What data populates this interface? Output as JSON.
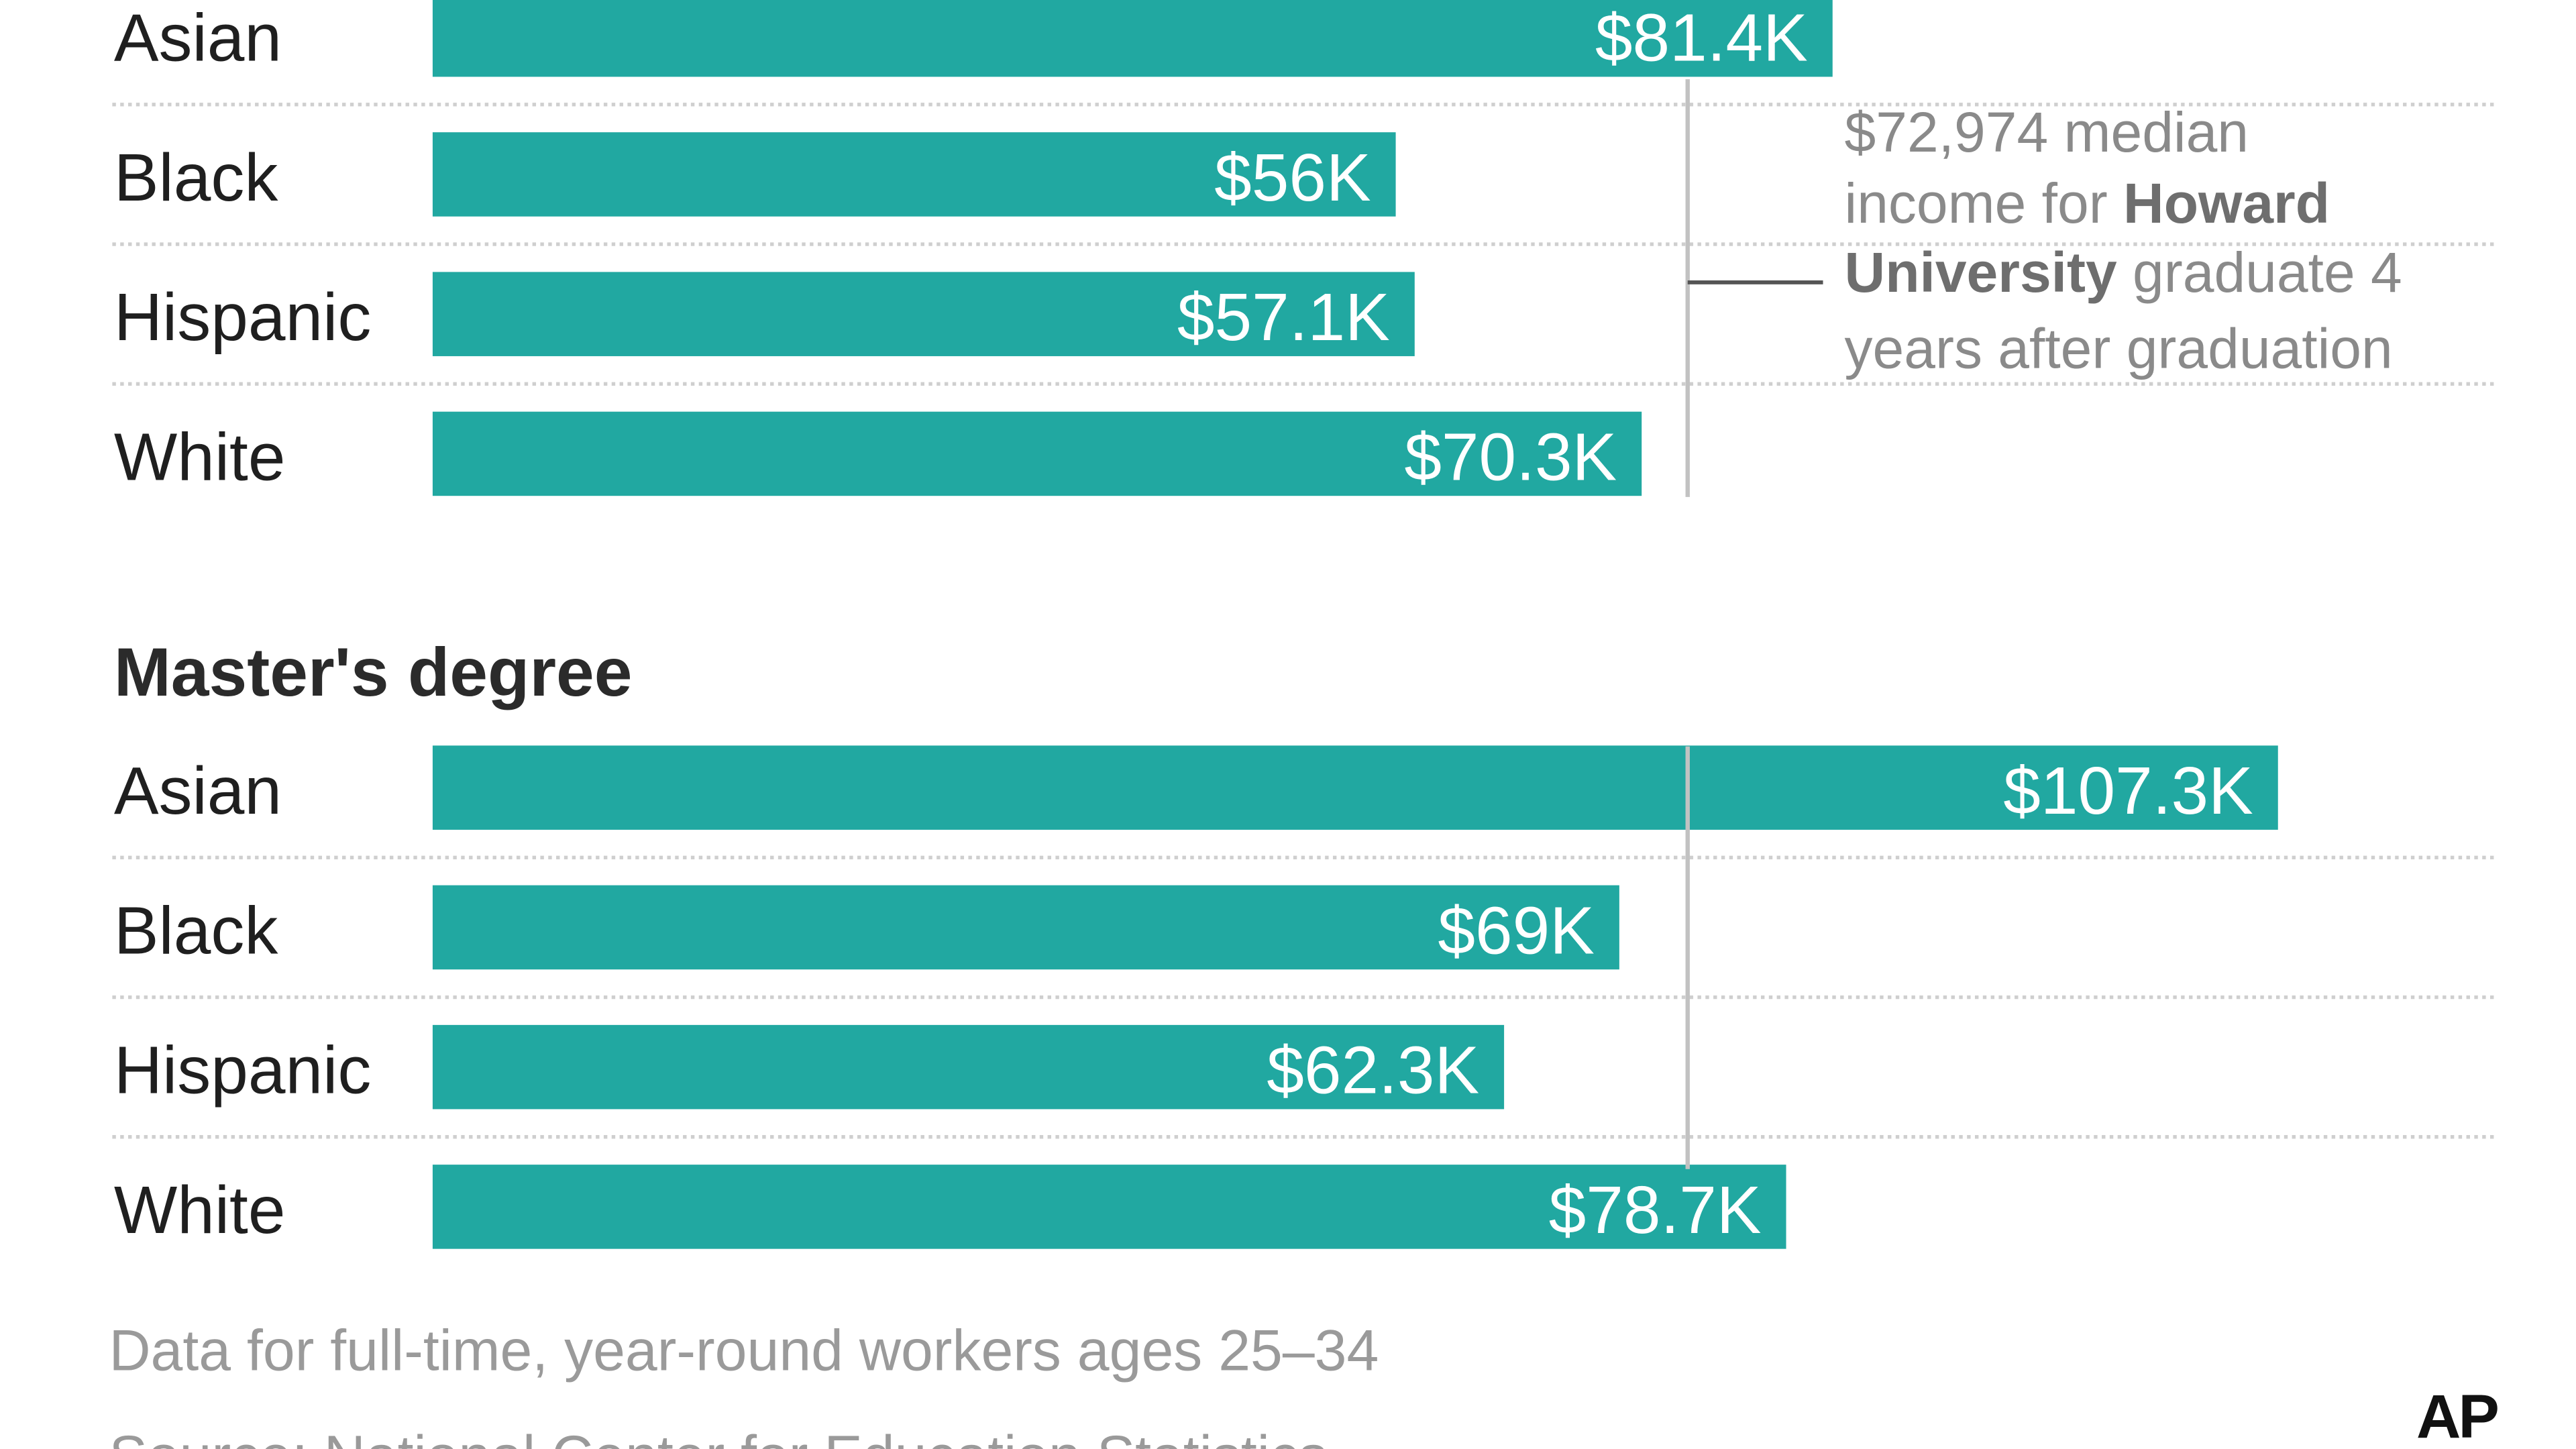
{
  "chart_data": [
    {
      "type": "bar",
      "orientation": "horizontal",
      "title": "",
      "categories": [
        "Asian",
        "Black",
        "Hispanic",
        "White"
      ],
      "values": [
        81.4,
        56.0,
        57.1,
        70.3
      ],
      "value_labels": [
        "$81.4K",
        "$56K",
        "$57.1K",
        "$70.3K"
      ],
      "unit": "thousands of dollars",
      "bar_color": "#21A8A1",
      "reference_line": {
        "value": 72.974
      }
    },
    {
      "type": "bar",
      "orientation": "horizontal",
      "title": "Master's degree",
      "categories": [
        "Asian",
        "Black",
        "Hispanic",
        "White"
      ],
      "values": [
        107.3,
        69.0,
        62.3,
        78.7
      ],
      "value_labels": [
        "$107.3K",
        "$69K",
        "$62.3K",
        "$78.7K"
      ],
      "unit": "thousands of dollars",
      "bar_color": "#21A8A1",
      "reference_line": {
        "value": 72.974
      }
    }
  ],
  "annotation": {
    "lines": [
      [
        {
          "text": "$72,974 median",
          "bold": false
        }
      ],
      [
        {
          "text": "income for ",
          "bold": false
        },
        {
          "text": "Howard",
          "bold": true
        }
      ],
      [
        {
          "text": "University",
          "bold": true
        },
        {
          "text": " graduate 4",
          "bold": false
        }
      ],
      [
        {
          "text": "years after graduation",
          "bold": false
        }
      ]
    ]
  },
  "footnote": "Data for full-time, year-round workers ages 25–34",
  "source": "Source: National Center for Education Statistics",
  "credit": "AP",
  "colors": {
    "bar": "#21A8A1",
    "reference_line": "#c2c2c2",
    "row_divider": "#cfcfcf",
    "annotation_text": "#8a8a8a"
  }
}
